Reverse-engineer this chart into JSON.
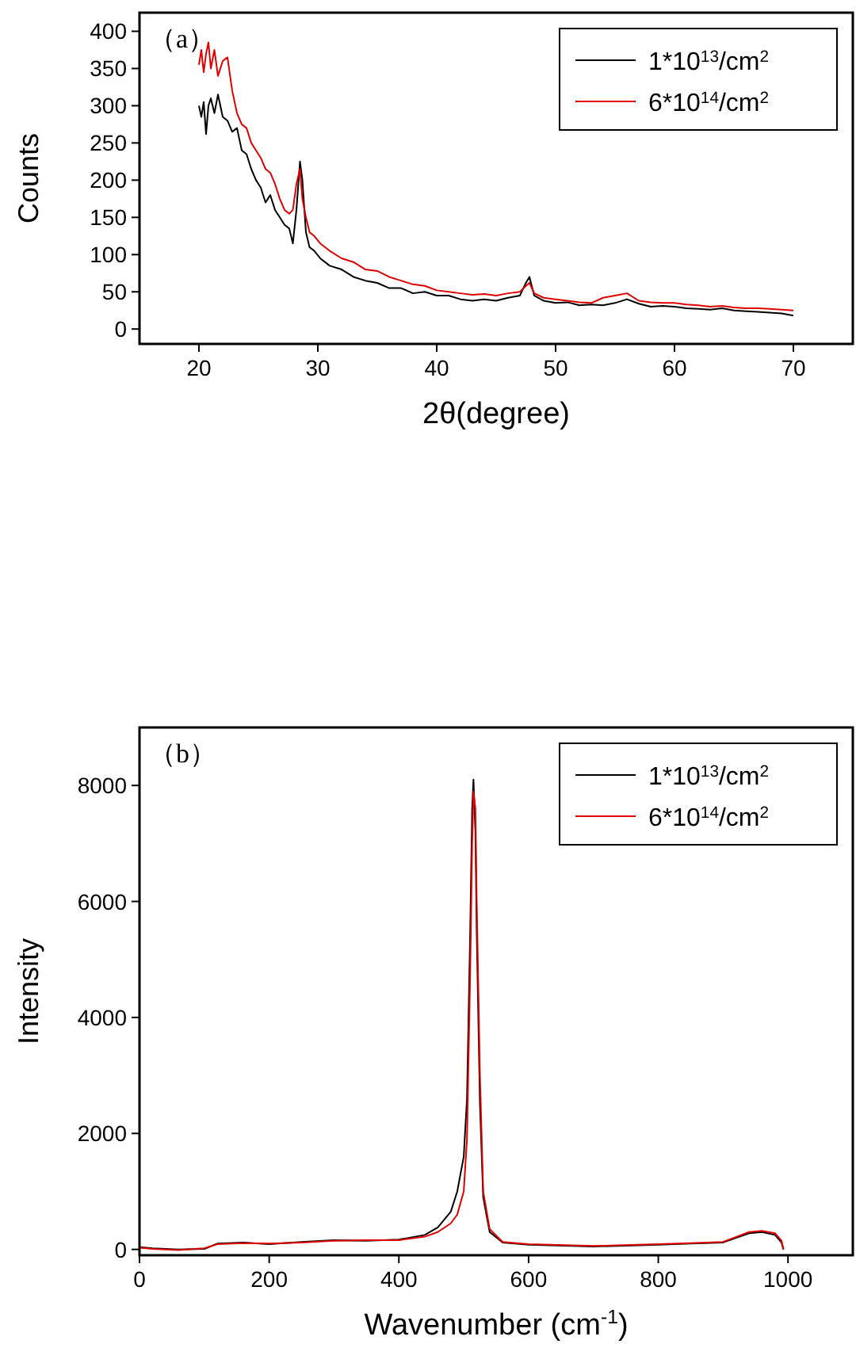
{
  "chart_data": [
    {
      "type": "line",
      "xlabel": "2θ(degree)",
      "ylabel": "Counts",
      "annotations": [
        "（a）"
      ],
      "legend": "top right",
      "xlim": [
        15,
        75
      ],
      "xticks": [
        20,
        30,
        40,
        50,
        60,
        70
      ],
      "ylim": [
        -20,
        425
      ],
      "yticks": [
        0,
        50,
        100,
        150,
        200,
        250,
        300,
        350,
        400
      ],
      "series": [
        {
          "name": "1*10$^{13}$/cm$^{2}$",
          "color": "#000000",
          "x": [
            20,
            20.2,
            20.4,
            20.6,
            20.8,
            21,
            21.3,
            21.6,
            22,
            22.4,
            22.8,
            23.2,
            23.6,
            24,
            24.4,
            24.8,
            25.2,
            25.6,
            26,
            26.4,
            26.8,
            27.2,
            27.6,
            27.9,
            28.2,
            28.5,
            28.7,
            29,
            29.3,
            29.7,
            30.2,
            31,
            32,
            33,
            34,
            35,
            36,
            37,
            38,
            39,
            40,
            41,
            42,
            43,
            44,
            45,
            46,
            47,
            47.5,
            47.8,
            48.2,
            49,
            50,
            51,
            52,
            53,
            54,
            55,
            56,
            57,
            58,
            59,
            60,
            61,
            62,
            63,
            64,
            65,
            66,
            67,
            68,
            69,
            70
          ],
          "values": [
            300,
            285,
            305,
            262,
            300,
            310,
            290,
            315,
            285,
            280,
            265,
            270,
            240,
            235,
            215,
            200,
            190,
            170,
            180,
            160,
            150,
            140,
            135,
            115,
            160,
            225,
            200,
            130,
            110,
            105,
            95,
            85,
            80,
            70,
            65,
            62,
            55,
            55,
            48,
            50,
            45,
            45,
            40,
            38,
            40,
            38,
            42,
            45,
            62,
            70,
            45,
            38,
            35,
            36,
            32,
            33,
            32,
            35,
            40,
            34,
            30,
            31,
            30,
            28,
            27,
            26,
            28,
            25,
            24,
            23,
            22,
            21,
            18
          ]
        },
        {
          "name": "6*10$^{14}$/cm$^{2}$",
          "color": "#e00000",
          "x": [
            20,
            20.2,
            20.4,
            20.6,
            20.8,
            21,
            21.3,
            21.6,
            22,
            22.4,
            22.8,
            23.2,
            23.6,
            24,
            24.4,
            24.8,
            25.2,
            25.6,
            26,
            26.4,
            26.8,
            27.2,
            27.6,
            27.9,
            28.2,
            28.5,
            28.7,
            29,
            29.3,
            29.7,
            30.2,
            31,
            32,
            33,
            34,
            35,
            36,
            37,
            38,
            39,
            40,
            41,
            42,
            43,
            44,
            45,
            46,
            47,
            47.5,
            47.8,
            48.2,
            49,
            50,
            51,
            52,
            53,
            54,
            55,
            56,
            57,
            58,
            59,
            60,
            61,
            62,
            63,
            64,
            65,
            66,
            67,
            68,
            69,
            70
          ],
          "values": [
            355,
            375,
            345,
            370,
            385,
            350,
            375,
            340,
            360,
            365,
            320,
            290,
            275,
            270,
            250,
            240,
            230,
            215,
            210,
            195,
            175,
            160,
            155,
            160,
            195,
            215,
            175,
            150,
            130,
            125,
            115,
            105,
            95,
            90,
            80,
            78,
            70,
            65,
            60,
            58,
            52,
            50,
            48,
            46,
            47,
            45,
            48,
            50,
            58,
            62,
            48,
            42,
            40,
            38,
            36,
            35,
            42,
            45,
            48,
            38,
            36,
            35,
            35,
            33,
            32,
            30,
            31,
            29,
            28,
            28,
            27,
            26,
            25
          ]
        }
      ]
    },
    {
      "type": "line",
      "xlabel": "Wavenumber (cm$^{-1}$)",
      "ylabel": "Intensity",
      "annotations": [
        "（b）"
      ],
      "legend": "top right",
      "xlim": [
        0,
        1100
      ],
      "xticks": [
        0,
        200,
        400,
        600,
        800,
        1000
      ],
      "ylim": [
        -100,
        9000
      ],
      "yticks": [
        0,
        2000,
        4000,
        6000,
        8000
      ],
      "series": [
        {
          "name": "1*10$^{13}$/cm$^{2}$",
          "color": "#000000",
          "x": [
            0,
            20,
            60,
            100,
            120,
            160,
            200,
            250,
            300,
            350,
            400,
            440,
            460,
            480,
            490,
            500,
            505,
            510,
            513,
            515,
            518,
            520,
            525,
            530,
            540,
            560,
            600,
            700,
            800,
            850,
            900,
            940,
            960,
            980,
            990,
            993
          ],
          "values": [
            40,
            20,
            0,
            10,
            100,
            120,
            90,
            130,
            160,
            150,
            170,
            250,
            380,
            650,
            1000,
            1600,
            2600,
            5500,
            7600,
            8100,
            7200,
            5500,
            2500,
            900,
            300,
            120,
            80,
            50,
            80,
            100,
            120,
            280,
            300,
            250,
            120,
            0
          ]
        },
        {
          "name": "6*10$^{14}$/cm$^{2}$",
          "color": "#e00000",
          "x": [
            0,
            20,
            60,
            100,
            120,
            160,
            200,
            250,
            300,
            350,
            400,
            440,
            460,
            480,
            490,
            500,
            505,
            510,
            513,
            515,
            518,
            520,
            525,
            530,
            540,
            560,
            600,
            700,
            800,
            850,
            900,
            940,
            960,
            980,
            990,
            993
          ],
          "values": [
            30,
            10,
            -10,
            20,
            90,
            110,
            100,
            120,
            150,
            160,
            160,
            220,
            300,
            450,
            600,
            1000,
            1900,
            4800,
            7000,
            7900,
            7600,
            6000,
            3000,
            1000,
            350,
            130,
            90,
            60,
            90,
            110,
            130,
            300,
            320,
            280,
            150,
            0
          ]
        }
      ]
    }
  ]
}
